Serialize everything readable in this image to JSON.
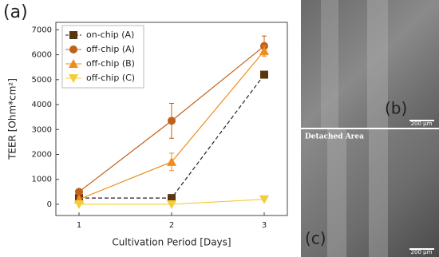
{
  "chart_data": {
    "type": "line",
    "panel_label": "(a)",
    "x_label": "Cultivation Period [Days]",
    "y_label": "TEER [Ohm*cm²]",
    "x": [
      1,
      2,
      3
    ],
    "xlim": [
      0.75,
      3.25
    ],
    "xticks": [
      1,
      2,
      3
    ],
    "ylim": [
      -450,
      7300
    ],
    "yticks": [
      0,
      1000,
      2000,
      3000,
      4000,
      5000,
      6000,
      7000
    ],
    "legend": "upper left",
    "series": [
      {
        "name": "on-chip (A)",
        "color": "#5a3610",
        "line_color": "#222222",
        "dashed": true,
        "marker": "square",
        "values": [
          250,
          250,
          5200
        ]
      },
      {
        "name": "off-chip (A)",
        "color": "#c0601a",
        "marker": "circle",
        "values": [
          500,
          3350,
          6350
        ],
        "errors": [
          80,
          700,
          400
        ]
      },
      {
        "name": "off-chip (B)",
        "color": "#f08c1c",
        "marker": "triangle-up",
        "values": [
          200,
          1700,
          6150
        ],
        "errors": [
          100,
          350,
          200
        ]
      },
      {
        "name": "off-chip (C)",
        "color": "#f5cc3a",
        "marker": "triangle-down",
        "values": [
          0,
          0,
          200
        ]
      }
    ]
  },
  "images": [
    {
      "label": "(b)",
      "scale_bar": "200 µm"
    },
    {
      "label": "(c)",
      "annotation": "Detached Area",
      "scale_bar": "200 µm"
    }
  ]
}
